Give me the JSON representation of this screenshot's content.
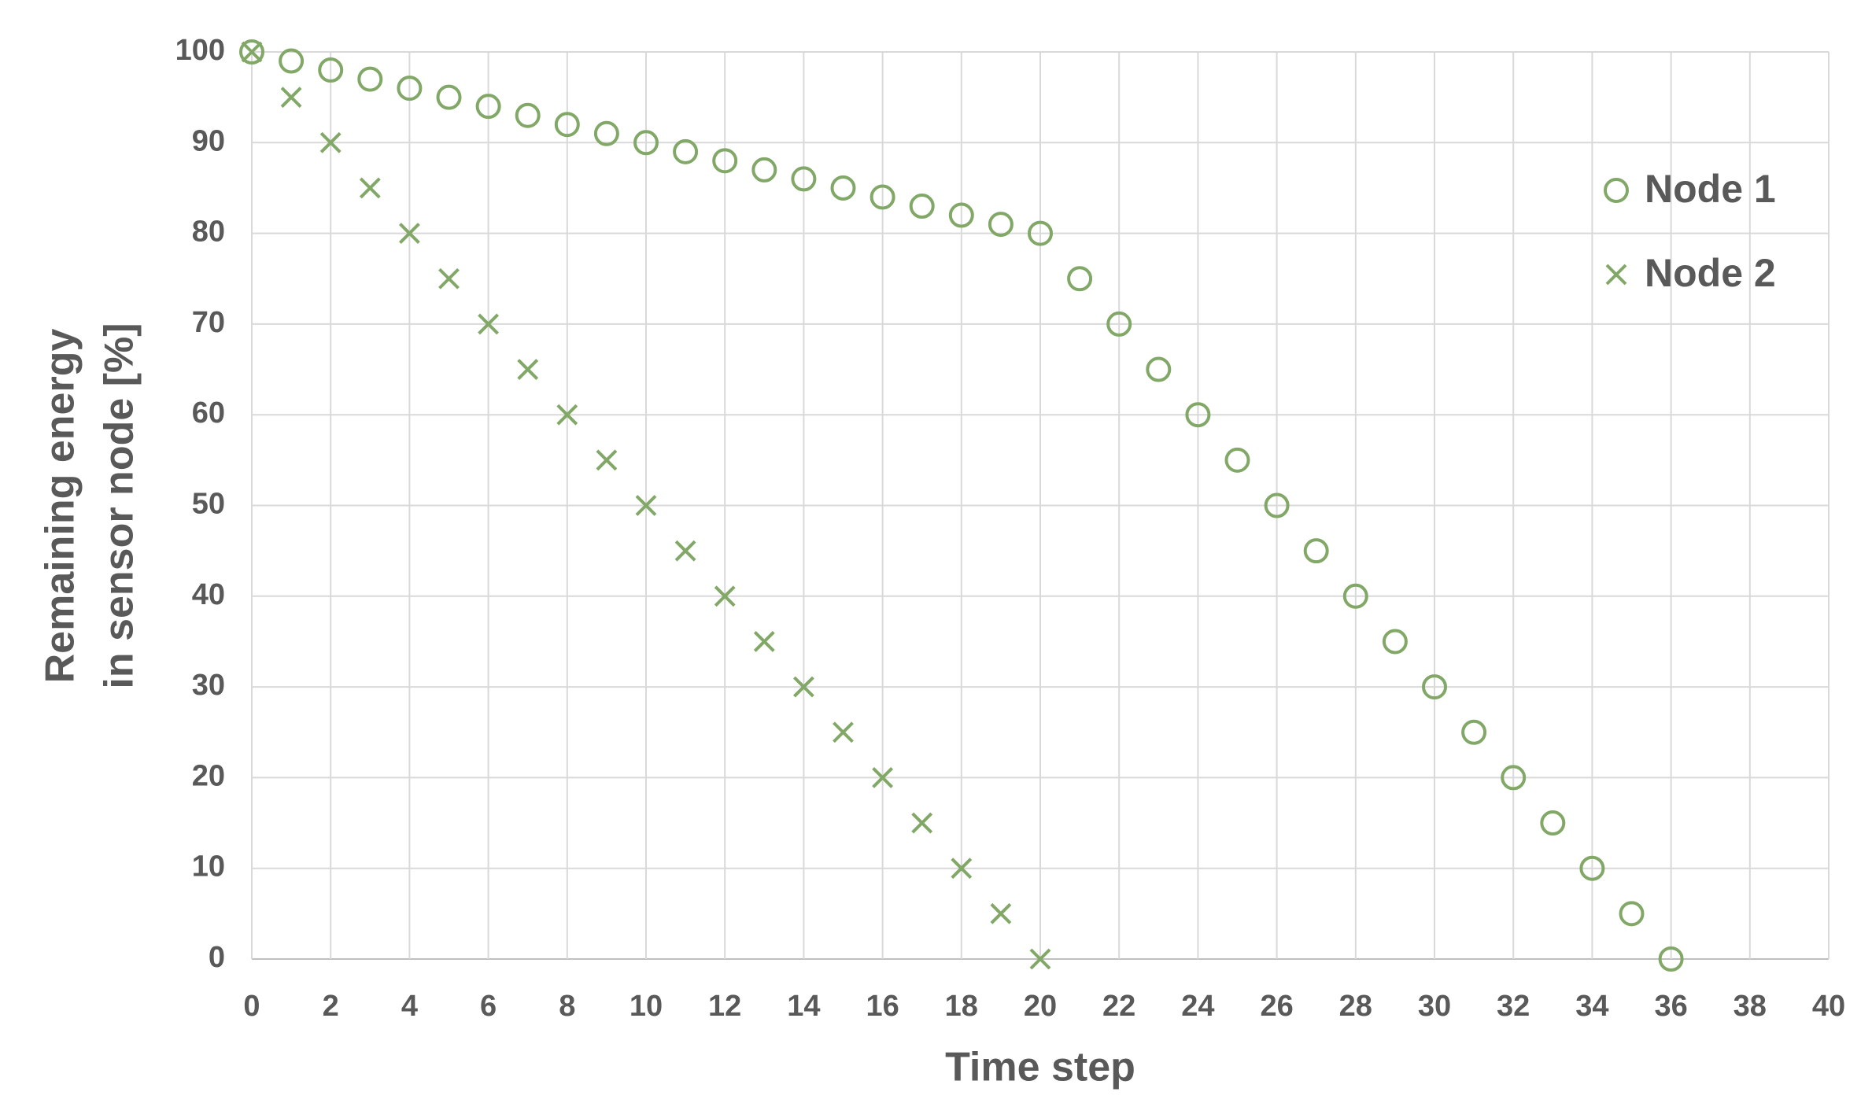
{
  "chart_data": {
    "type": "scatter",
    "xlabel": "Time step",
    "ylabel": [
      "Remaining energy",
      "in sensor node [%]"
    ],
    "xlim": [
      0,
      40
    ],
    "xticks": [
      0,
      2,
      4,
      6,
      8,
      10,
      12,
      14,
      16,
      18,
      20,
      22,
      24,
      26,
      28,
      30,
      32,
      34,
      36,
      38,
      40
    ],
    "ylim": [
      0,
      100
    ],
    "yticks": [
      0,
      10,
      20,
      30,
      40,
      50,
      60,
      70,
      80,
      90,
      100
    ],
    "grid": true,
    "legend": "right",
    "series": [
      {
        "name": "Node 1",
        "color": "#82a867",
        "marker": "circle",
        "x": [
          0,
          1,
          2,
          3,
          4,
          5,
          6,
          7,
          8,
          9,
          10,
          11,
          12,
          13,
          14,
          15,
          16,
          17,
          18,
          19,
          20,
          21,
          22,
          23,
          24,
          25,
          26,
          27,
          28,
          29,
          30,
          31,
          32,
          33,
          34,
          35,
          36
        ],
        "values": [
          100,
          99,
          98,
          97,
          96,
          95,
          94,
          93,
          92,
          91,
          90,
          89,
          88,
          87,
          86,
          85,
          84,
          83,
          82,
          81,
          80,
          75,
          70,
          65,
          60,
          55,
          50,
          45,
          40,
          35,
          30,
          25,
          20,
          15,
          10,
          5,
          0
        ]
      },
      {
        "name": "Node 2",
        "color": "#82a867",
        "marker": "x",
        "x": [
          0,
          1,
          2,
          3,
          4,
          5,
          6,
          7,
          8,
          9,
          10,
          11,
          12,
          13,
          14,
          15,
          16,
          17,
          18,
          19,
          20
        ],
        "values": [
          100,
          95,
          90,
          85,
          80,
          75,
          70,
          65,
          60,
          55,
          50,
          45,
          40,
          35,
          30,
          25,
          20,
          15,
          10,
          5,
          0
        ]
      }
    ]
  }
}
